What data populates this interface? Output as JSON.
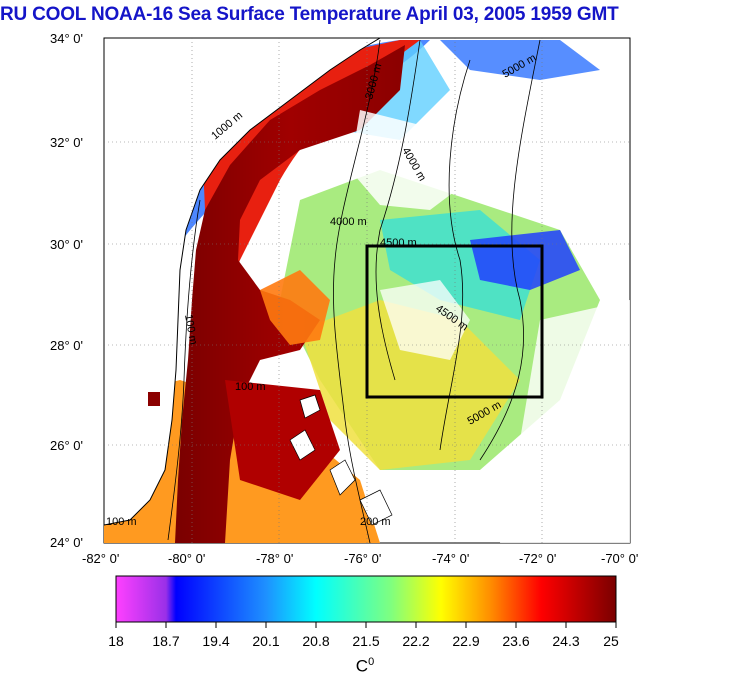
{
  "title": "RU COOL  NOAA-16 Sea Surface Temperature April 03, 2005 1959 GMT",
  "map": {
    "lat_labels": [
      "34° 0'",
      "32° 0'",
      "30° 0'",
      "28° 0'",
      "26° 0'",
      "24° 0'"
    ],
    "lon_labels": [
      "-82° 0'",
      "-80° 0'",
      "-78° 0'",
      "-76° 0'",
      "-74° 0'",
      "-72° 0'",
      "-70° 0'"
    ],
    "contour_labels": [
      "1000 m",
      "3000 m",
      "4000 m",
      "4500 m",
      "5000 m",
      "100 m",
      "200 m",
      "4000 m",
      "4500 m",
      "5000 m",
      "100 m",
      "100 m"
    ],
    "study_box": "black rectangle 72°W–76°W, 27°N–30°N"
  },
  "colorbar": {
    "ticks": [
      "18",
      "18.7",
      "19.4",
      "20.1",
      "20.8",
      "21.5",
      "22.2",
      "22.9",
      "23.6",
      "24.3",
      "25"
    ],
    "unit": "C",
    "unit_sup": "0",
    "colors": [
      "#ff40ff",
      "#8a2be2",
      "#0000ff",
      "#1e90ff",
      "#00ffff",
      "#7fff7f",
      "#ffff00",
      "#ff8c00",
      "#ff0000",
      "#b00000",
      "#7a0000"
    ]
  },
  "colors": {
    "title": "#1515c8",
    "gulf_stream": "#a00000",
    "land": "#ffffff",
    "box": "#000000"
  }
}
